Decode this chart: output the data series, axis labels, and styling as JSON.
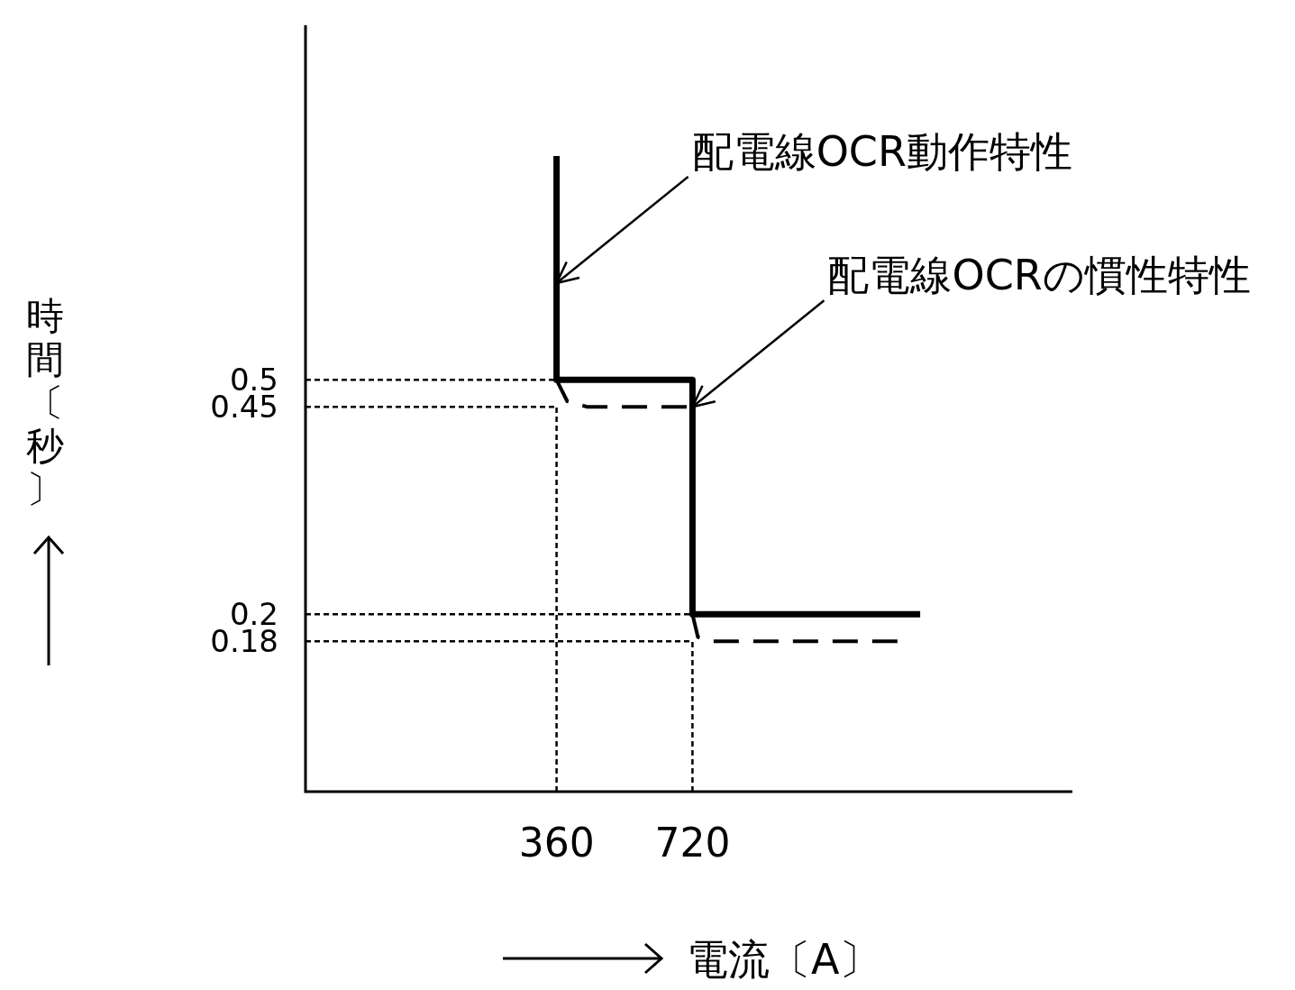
{
  "chart_data": {
    "type": "line",
    "log": "xy",
    "xlabel": "電流〔A〕",
    "ylabel": "時間〔秒〕",
    "xlim": [
      100,
      5000
    ],
    "ylim": [
      0.1,
      2
    ],
    "xticks": [
      360,
      720
    ],
    "yticks": [
      0.5,
      0.45,
      0.2,
      0.18
    ],
    "grid": false,
    "series": [
      {
        "color": "#000000",
        "line_style": "solid",
        "x": [
          360,
          360,
          720,
          720,
          2300
        ],
        "values": [
          1.2,
          0.5,
          0.5,
          0.2,
          0.2
        ]
      },
      {
        "color": "#000000",
        "line_style": "dashed",
        "x": [
          360,
          380,
          420,
          720,
          null,
          720,
          740,
          800,
          2100
        ],
        "values": [
          0.5,
          0.46,
          0.45,
          0.45,
          null,
          0.2,
          0.183,
          0.18,
          0.18
        ]
      },
      {
        "color": "#000000",
        "line_style": "dotted",
        "x": [
          100,
          360
        ],
        "values": [
          0.5,
          0.5
        ]
      },
      {
        "color": "#000000",
        "line_style": "dotted",
        "x": [
          100,
          360
        ],
        "values": [
          0.45,
          0.45
        ]
      },
      {
        "color": "#000000",
        "line_style": "dotted",
        "x": [
          100,
          720
        ],
        "values": [
          0.2,
          0.2
        ]
      },
      {
        "color": "#000000",
        "line_style": "dotted",
        "x": [
          100,
          720
        ],
        "values": [
          0.18,
          0.18
        ]
      },
      {
        "color": "#000000",
        "line_style": "dotted",
        "x": [
          360,
          360
        ],
        "values": [
          0.1,
          0.45
        ]
      },
      {
        "color": "#000000",
        "line_style": "dotted",
        "x": [
          720,
          720
        ],
        "values": [
          0.1,
          0.18
        ]
      }
    ],
    "annotations": [
      {
        "text": "配電線OCR動作特性",
        "x": 360,
        "y": 0.73
      },
      {
        "text": "配電線OCRの慣性特性",
        "x": 720,
        "y": 0.45
      }
    ]
  }
}
